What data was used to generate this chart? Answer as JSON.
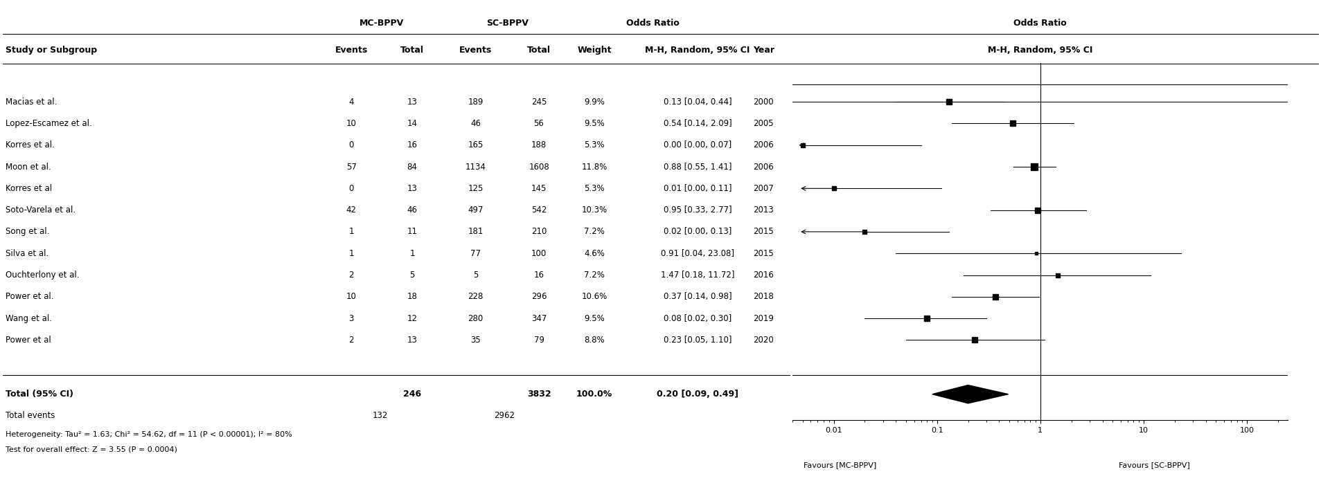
{
  "studies": [
    {
      "name": "Macias et al.",
      "mc_events": 4,
      "mc_total": 13,
      "sc_events": 189,
      "sc_total": 245,
      "weight": "9.9%",
      "or": 0.13,
      "ci_low": 0.04,
      "ci_high": 0.44,
      "year": "2000"
    },
    {
      "name": "Lopez-Escamez et al.",
      "mc_events": 10,
      "mc_total": 14,
      "sc_events": 46,
      "sc_total": 56,
      "weight": "9.5%",
      "or": 0.54,
      "ci_low": 0.14,
      "ci_high": 2.09,
      "year": "2005"
    },
    {
      "name": "Korres et al.",
      "mc_events": 0,
      "mc_total": 16,
      "sc_events": 165,
      "sc_total": 188,
      "weight": "5.3%",
      "or": 0.0,
      "ci_low": 0.0,
      "ci_high": 0.07,
      "year": "2006"
    },
    {
      "name": "Moon et al.",
      "mc_events": 57,
      "mc_total": 84,
      "sc_events": 1134,
      "sc_total": 1608,
      "weight": "11.8%",
      "or": 0.88,
      "ci_low": 0.55,
      "ci_high": 1.41,
      "year": "2006"
    },
    {
      "name": "Korres et al",
      "mc_events": 0,
      "mc_total": 13,
      "sc_events": 125,
      "sc_total": 145,
      "weight": "5.3%",
      "or": 0.01,
      "ci_low": 0.0,
      "ci_high": 0.11,
      "year": "2007"
    },
    {
      "name": "Soto-Varela et al.",
      "mc_events": 42,
      "mc_total": 46,
      "sc_events": 497,
      "sc_total": 542,
      "weight": "10.3%",
      "or": 0.95,
      "ci_low": 0.33,
      "ci_high": 2.77,
      "year": "2013"
    },
    {
      "name": "Song et al.",
      "mc_events": 1,
      "mc_total": 11,
      "sc_events": 181,
      "sc_total": 210,
      "weight": "7.2%",
      "or": 0.02,
      "ci_low": 0.0,
      "ci_high": 0.13,
      "year": "2015"
    },
    {
      "name": "Silva et al.",
      "mc_events": 1,
      "mc_total": 1,
      "sc_events": 77,
      "sc_total": 100,
      "weight": "4.6%",
      "or": 0.91,
      "ci_low": 0.04,
      "ci_high": 23.08,
      "year": "2015"
    },
    {
      "name": "Ouchterlony et al.",
      "mc_events": 2,
      "mc_total": 5,
      "sc_events": 5,
      "sc_total": 16,
      "weight": "7.2%",
      "or": 1.47,
      "ci_low": 0.18,
      "ci_high": 11.72,
      "year": "2016"
    },
    {
      "name": "Power et al.",
      "mc_events": 10,
      "mc_total": 18,
      "sc_events": 228,
      "sc_total": 296,
      "weight": "10.6%",
      "or": 0.37,
      "ci_low": 0.14,
      "ci_high": 0.98,
      "year": "2018"
    },
    {
      "name": "Wang et al.",
      "mc_events": 3,
      "mc_total": 12,
      "sc_events": 280,
      "sc_total": 347,
      "weight": "9.5%",
      "or": 0.08,
      "ci_low": 0.02,
      "ci_high": 0.3,
      "year": "2019"
    },
    {
      "name": "Power et al",
      "mc_events": 2,
      "mc_total": 13,
      "sc_events": 35,
      "sc_total": 79,
      "weight": "8.8%",
      "or": 0.23,
      "ci_low": 0.05,
      "ci_high": 1.1,
      "year": "2020"
    }
  ],
  "total": {
    "mc_total": 246,
    "sc_total": 3832,
    "mc_events": 132,
    "sc_events": 2962,
    "weight": "100.0%",
    "or": 0.2,
    "ci_low": 0.09,
    "ci_high": 0.49
  },
  "heterogeneity_text": "Heterogeneity: Tau² = 1.63; Chi² = 54.62, df = 11 (P < 0.00001); I² = 80%",
  "overall_effect_text": "Test for overall effect: Z = 3.55 (P = 0.0004)",
  "x_axis_label_left": "Favours [MC-BPPV]",
  "x_axis_label_right": "Favours [SC-BPPV]",
  "x_ticks": [
    0.01,
    0.1,
    1,
    10,
    100
  ],
  "x_tick_labels": [
    "0.01",
    "0.1",
    "1",
    "10",
    "100"
  ],
  "log_xlim_low": 0.004,
  "log_xlim_high": 250,
  "arrow_threshold": 0.008
}
